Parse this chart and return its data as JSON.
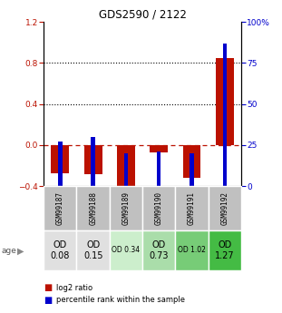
{
  "title": "GDS2590 / 2122",
  "samples": [
    "GSM99187",
    "GSM99188",
    "GSM99189",
    "GSM99190",
    "GSM99191",
    "GSM99192"
  ],
  "log2_ratio": [
    -0.27,
    -0.28,
    -0.5,
    -0.07,
    -0.32,
    0.85
  ],
  "percentile_rank": [
    27,
    30,
    20,
    21,
    20,
    87
  ],
  "ylim_left": [
    -0.4,
    1.2
  ],
  "ylim_right": [
    0,
    100
  ],
  "yticks_left": [
    -0.4,
    0.0,
    0.4,
    0.8,
    1.2
  ],
  "yticks_right": [
    0,
    25,
    50,
    75,
    100
  ],
  "bar_color_red": "#bb1100",
  "bar_color_blue": "#0000cc",
  "age_labels": [
    "OD\n0.08",
    "OD\n0.15",
    "OD 0.34",
    "OD\n0.73",
    "OD 1.02",
    "OD\n1.27"
  ],
  "age_bg_colors": [
    "#e0e0e0",
    "#e0e0e0",
    "#cceecc",
    "#aaddaa",
    "#77cc77",
    "#44bb44"
  ],
  "age_label_large": [
    true,
    true,
    false,
    true,
    false,
    true
  ],
  "sample_bg_color": "#c0c0c0",
  "legend_red_label": "log2 ratio",
  "legend_blue_label": "percentile rank within the sample"
}
